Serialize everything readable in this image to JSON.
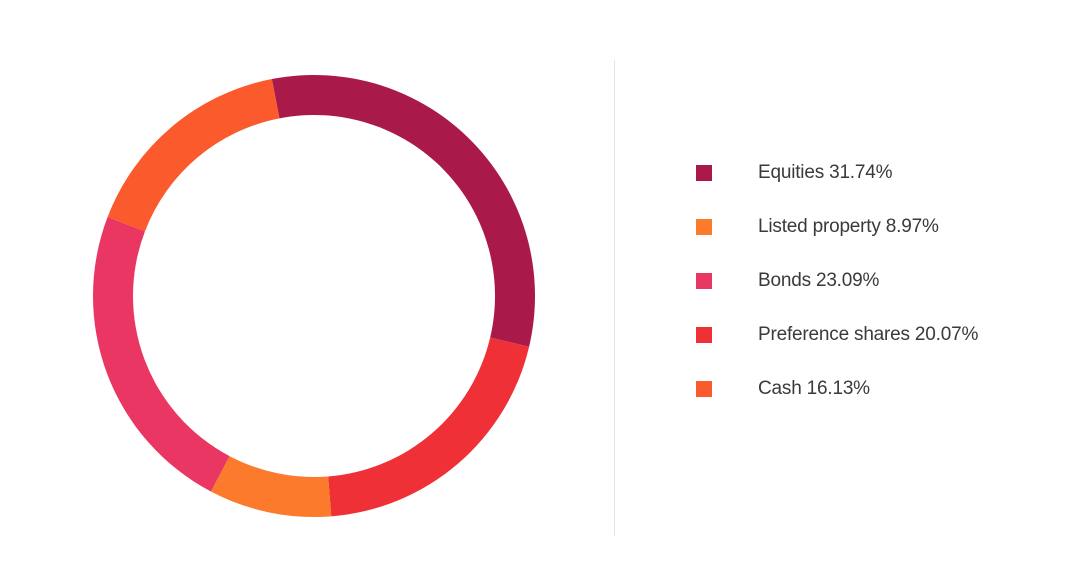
{
  "chart_data": {
    "type": "pie",
    "variant": "donut",
    "title": "",
    "legend_position": "right",
    "slices": [
      {
        "label": "Equities",
        "value": 31.74,
        "display": "Equities 31.74%",
        "color": "#a91a4b"
      },
      {
        "label": "Listed property",
        "value": 8.97,
        "display": "Listed property 8.97%",
        "color": "#fb7a2b"
      },
      {
        "label": "Bonds",
        "value": 23.09,
        "display": "Bonds 23.09%",
        "color": "#e93662"
      },
      {
        "label": "Preference shares",
        "value": 20.07,
        "display": "Preference shares 20.07%",
        "color": "#ef3037"
      },
      {
        "label": "Cash",
        "value": 16.13,
        "display": "Cash 16.13%",
        "color": "#fa5a2c"
      }
    ],
    "draw_order": [
      "Equities",
      "Preference shares",
      "Listed property",
      "Bonds",
      "Cash"
    ]
  }
}
